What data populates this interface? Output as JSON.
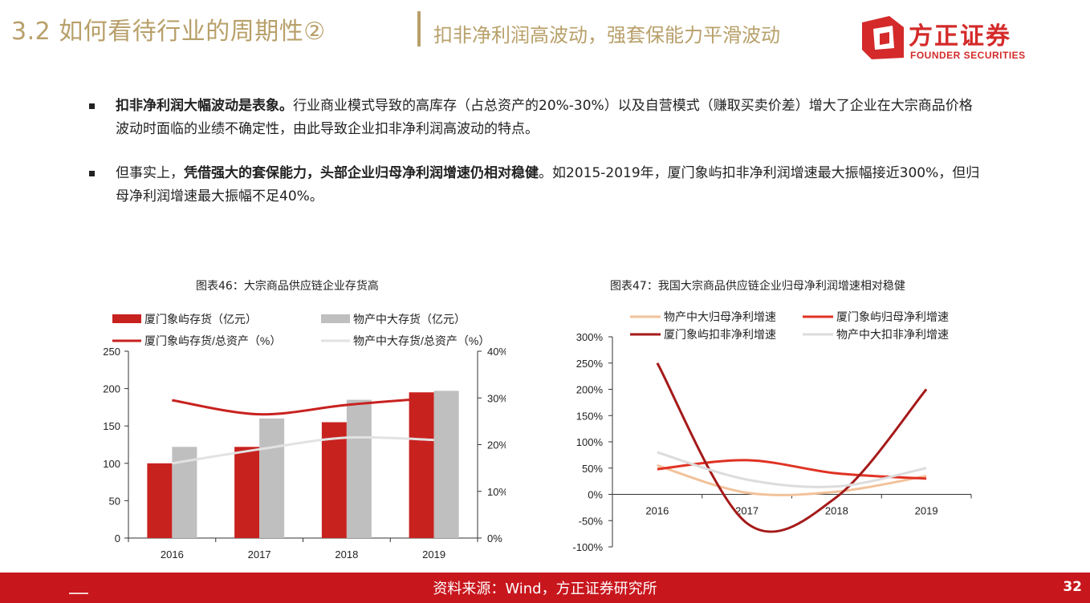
{
  "header": {
    "title": "3.2 如何看待行业的周期性②",
    "subtitle": "扣非净利润高波动，强套保能力平滑波动",
    "logo_text": "方正证券",
    "logo_sub": "FOUNDER SECURITIES",
    "colors": {
      "title": "#b8a06a",
      "brand": "#d42a2a"
    }
  },
  "bullets": [
    {
      "bold": "扣非净利润大幅波动是表象。",
      "text": "行业商业模式导致的高库存（占总资产的20%-30%）以及自营模式（赚取买卖价差）增大了企业在大宗商品价格波动时面临的业绩不确定性，由此导致企业扣非净利润高波动的特点。"
    },
    {
      "pre": "但事实上，",
      "bold": "凭借强大的套保能力，头部企业归母净利润增速仍相对稳健",
      "text": "。如2015-2019年，厦门象屿扣非净利润增速最大振幅接近300%，但归母净利润增速最大振幅不足40%。"
    }
  ],
  "chart_data": [
    {
      "type": "bar",
      "title": "图表46：大宗商品供应链企业存货高",
      "categories": [
        "2016",
        "2017",
        "2018",
        "2019"
      ],
      "series": [
        {
          "name": "厦门象屿存货（亿元）",
          "kind": "bar",
          "axis": "left",
          "color": "#c8221f",
          "values": [
            100,
            122,
            155,
            195
          ]
        },
        {
          "name": "物产中大存货（亿元）",
          "kind": "bar",
          "axis": "left",
          "color": "#bfbfbf",
          "values": [
            122,
            160,
            185,
            197
          ]
        },
        {
          "name": "厦门象屿存货/总资产（%）",
          "kind": "line",
          "axis": "right",
          "color": "#c8221f",
          "values": [
            29.5,
            26.5,
            28.5,
            30
          ]
        },
        {
          "name": "物产中大存货/总资产（%）",
          "kind": "line",
          "axis": "right",
          "color": "#e2e2e2",
          "values": [
            16,
            19,
            21.5,
            21
          ]
        }
      ],
      "y_left": {
        "ticks": [
          "0",
          "50",
          "100",
          "150",
          "200",
          "250"
        ],
        "ylim": [
          0,
          250
        ]
      },
      "y_right": {
        "ticks": [
          "0%",
          "10%",
          "20%",
          "30%",
          "40%"
        ],
        "ylim": [
          0,
          40
        ]
      },
      "legend": "top"
    },
    {
      "type": "line",
      "title": "图表47：我国大宗商品供应链企业归母净利润增速相对稳健",
      "categories": [
        "2016",
        "2017",
        "2018",
        "2019"
      ],
      "series": [
        {
          "name": "物产中大归母净利增速",
          "color": "#f2c29a",
          "values": [
            55,
            3,
            5,
            35
          ]
        },
        {
          "name": "厦门象屿归母净利增速",
          "color": "#e03224",
          "values": [
            48,
            65,
            40,
            30
          ]
        },
        {
          "name": "厦门象屿扣非净利增速",
          "color": "#a51a1a",
          "values": [
            250,
            -55,
            -5,
            200
          ]
        },
        {
          "name": "物产中大扣非净利增速",
          "color": "#dcdcdc",
          "values": [
            80,
            28,
            15,
            50
          ]
        }
      ],
      "y": {
        "ticks": [
          "-100%",
          "-50%",
          "0%",
          "50%",
          "100%",
          "150%",
          "200%",
          "250%",
          "300%"
        ],
        "ylim": [
          -100,
          300
        ]
      },
      "legend": "top"
    }
  ],
  "footer": {
    "source": "资料来源：Wind，方正证券研究所",
    "page": "32",
    "color": "#c8161d"
  }
}
